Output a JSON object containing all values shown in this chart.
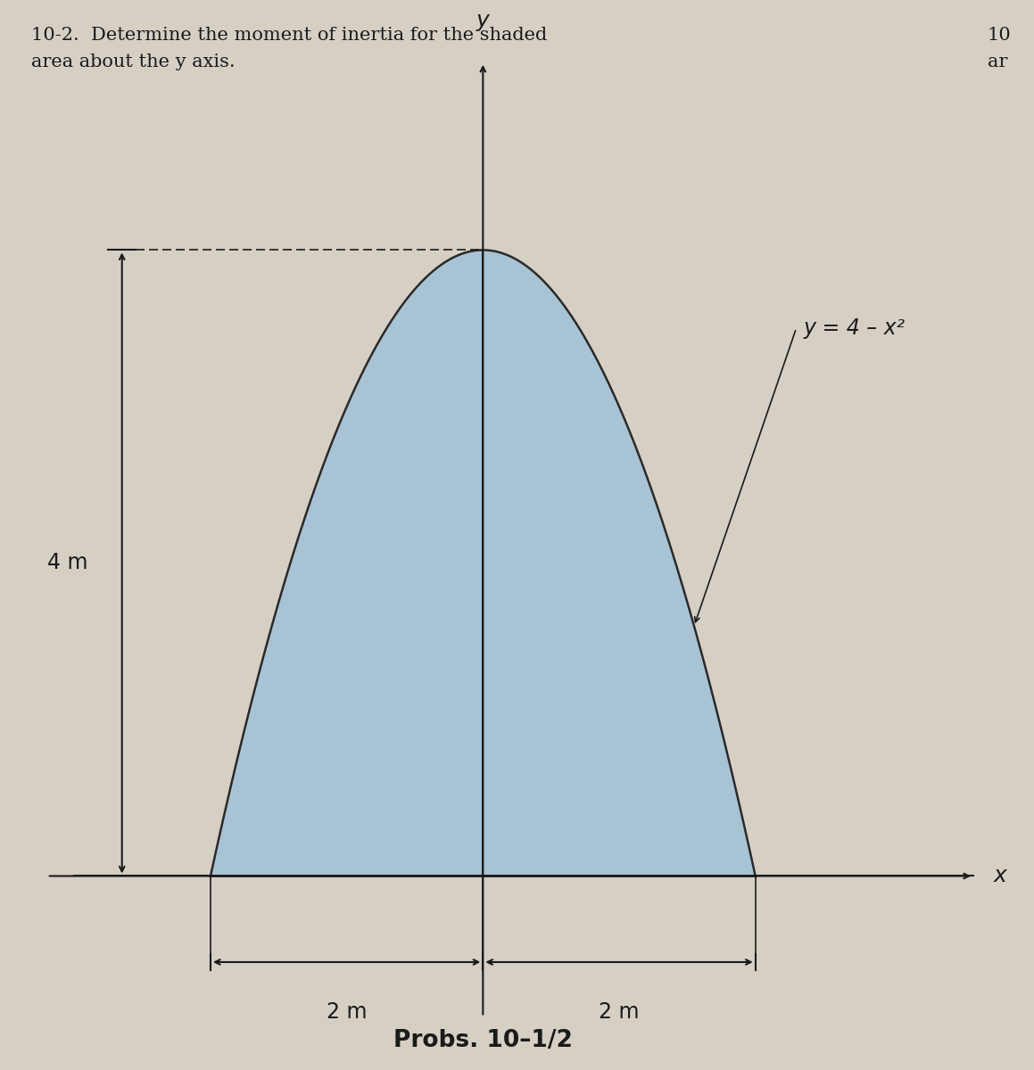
{
  "bg_color": "#d6cfc4",
  "shaded_color": "#a8c4d4",
  "shaded_edge_color": "#2a2a2a",
  "axis_color": "#1a1a1a",
  "text_color": "#1a1a1a",
  "title_line1": "10-2.  Determine the moment of inertia for the shaded",
  "title_line2": "area about the y axis.",
  "side_text_line1": "10",
  "side_text_line2": "ar",
  "curve_label": "y = 4 – x²",
  "y_axis_label": "y",
  "x_axis_label": "x",
  "dim_4m": "4 m",
  "dim_2m_left": "2 m",
  "dim_2m_right": "2 m",
  "caption": "Probs. 10–1/2",
  "x_range": [
    -3.5,
    4.0
  ],
  "y_range": [
    -1.2,
    5.5
  ],
  "curve_x_min": -2.0,
  "curve_x_max": 2.0,
  "curve_a": 4.0,
  "curve_b": 1.0,
  "origin_x": 0.0,
  "origin_y": 0.0
}
